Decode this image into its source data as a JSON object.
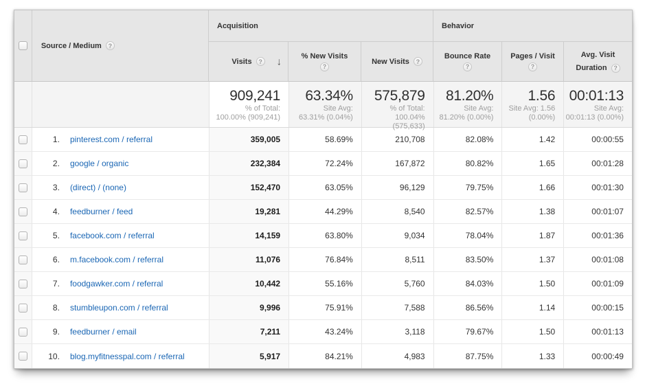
{
  "header": {
    "source_medium_label": "Source / Medium",
    "groups": {
      "acquisition": "Acquisition",
      "behavior": "Behavior"
    },
    "columns": {
      "visits": {
        "label": "Visits"
      },
      "pct_new_visits": {
        "label": "% New Visits"
      },
      "new_visits": {
        "label": "New Visits"
      },
      "bounce_rate": {
        "label": "Bounce Rate"
      },
      "pages_visit": {
        "label": "Pages / Visit"
      },
      "avg_duration": {
        "label_top": "Avg. Visit",
        "label_bottom": "Duration"
      }
    },
    "help_icon": "?",
    "sort_arrow": "↓",
    "sorted_column": "Visits",
    "sort_direction": "descending"
  },
  "summary": {
    "visits": {
      "value": "909,241",
      "sub1": "% of Total:",
      "sub2": "100.00% (909,241)"
    },
    "pct_new_visits": {
      "value": "63.34%",
      "sub1": "Site Avg:",
      "sub2": "63.31% (0.04%)"
    },
    "new_visits": {
      "value": "575,879",
      "sub1": "% of Total:",
      "sub2": "100.04% (575,633)"
    },
    "bounce_rate": {
      "value": "81.20%",
      "sub1": "Site Avg:",
      "sub2": "81.20% (0.00%)"
    },
    "pages_visit": {
      "value": "1.56",
      "sub1": "Site Avg: 1.56",
      "sub2": "(0.00%)"
    },
    "avg_duration": {
      "value": "00:01:13",
      "sub1": "Site Avg:",
      "sub2": "00:01:13 (0.00%)"
    }
  },
  "rows": [
    {
      "num": "1.",
      "source": "pinterest.com / referral",
      "visits": "359,005",
      "pct_new": "58.69%",
      "new_visits": "210,708",
      "bounce": "82.08%",
      "pages": "1.42",
      "duration": "00:00:55"
    },
    {
      "num": "2.",
      "source": "google / organic",
      "visits": "232,384",
      "pct_new": "72.24%",
      "new_visits": "167,872",
      "bounce": "80.82%",
      "pages": "1.65",
      "duration": "00:01:28"
    },
    {
      "num": "3.",
      "source": "(direct) / (none)",
      "visits": "152,470",
      "pct_new": "63.05%",
      "new_visits": "96,129",
      "bounce": "79.75%",
      "pages": "1.66",
      "duration": "00:01:30"
    },
    {
      "num": "4.",
      "source": "feedburner / feed",
      "visits": "19,281",
      "pct_new": "44.29%",
      "new_visits": "8,540",
      "bounce": "82.57%",
      "pages": "1.38",
      "duration": "00:01:07"
    },
    {
      "num": "5.",
      "source": "facebook.com / referral",
      "visits": "14,159",
      "pct_new": "63.80%",
      "new_visits": "9,034",
      "bounce": "78.04%",
      "pages": "1.87",
      "duration": "00:01:36"
    },
    {
      "num": "6.",
      "source": "m.facebook.com / referral",
      "visits": "11,076",
      "pct_new": "76.84%",
      "new_visits": "8,511",
      "bounce": "83.50%",
      "pages": "1.37",
      "duration": "00:01:08"
    },
    {
      "num": "7.",
      "source": "foodgawker.com / referral",
      "visits": "10,442",
      "pct_new": "55.16%",
      "new_visits": "5,760",
      "bounce": "84.03%",
      "pages": "1.50",
      "duration": "00:01:09"
    },
    {
      "num": "8.",
      "source": "stumbleupon.com / referral",
      "visits": "9,996",
      "pct_new": "75.91%",
      "new_visits": "7,588",
      "bounce": "86.56%",
      "pages": "1.14",
      "duration": "00:00:15"
    },
    {
      "num": "9.",
      "source": "feedburner / email",
      "visits": "7,211",
      "pct_new": "43.24%",
      "new_visits": "3,118",
      "bounce": "79.67%",
      "pages": "1.50",
      "duration": "00:01:13"
    },
    {
      "num": "10.",
      "source": "blog.myfitnesspal.com / referral",
      "visits": "5,917",
      "pct_new": "84.21%",
      "new_visits": "4,983",
      "bounce": "87.75%",
      "pages": "1.33",
      "duration": "00:00:49"
    }
  ],
  "colors": {
    "header_bg": "#e6e6e6",
    "summary_bg": "#f4f4f4",
    "sorted_column_bg": "#f9f9f9",
    "link_blue": "#1a66b4",
    "text": "#333333",
    "muted_text": "#9e9e9e"
  }
}
